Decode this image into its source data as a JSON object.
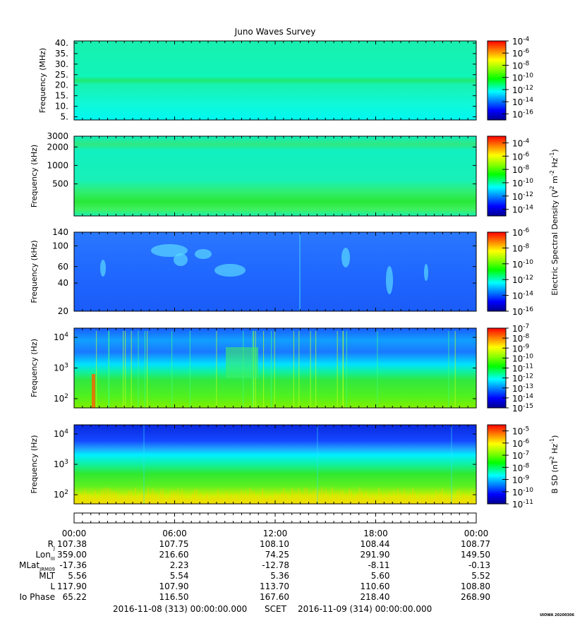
{
  "chart_data": {
    "type": "heatmap",
    "title": "Juno Waves Survey",
    "panels": [
      {
        "ylabel": "Frequency (MHz)",
        "yscale": "linear",
        "ylim": [
          3.5,
          41
        ],
        "yticks": [
          "40.",
          "35.",
          "30.",
          "25.",
          "20.",
          "15.",
          "10.",
          "5."
        ],
        "colorbar": {
          "ticks": [
            "-4",
            "-6",
            "-8",
            "-10",
            "-12",
            "-14",
            "-16"
          ],
          "range": [
            -17,
            -4
          ]
        }
      },
      {
        "ylabel": "Frequency (kHz)",
        "yscale": "log",
        "ylim": [
          150,
          3000
        ],
        "yticks": [
          "3000",
          "2000",
          "1000",
          "500"
        ],
        "colorbar": {
          "ticks": [
            "-4",
            "-6",
            "-8",
            "-10",
            "-12",
            "-14"
          ],
          "range": [
            -15,
            -3
          ]
        }
      },
      {
        "ylabel": "Frequency (kHz)",
        "yscale": "log",
        "ylim": [
          20,
          140
        ],
        "yticks": [
          "140",
          "100",
          "60",
          "40",
          "20"
        ],
        "colorbar": {
          "ticks": [
            "-6",
            "-8",
            "-10",
            "-12",
            "-14",
            "-16"
          ],
          "range": [
            -16,
            -6
          ]
        }
      },
      {
        "ylabel": "Frequency (Hz)",
        "yscale": "log",
        "ylim": [
          50,
          20000
        ],
        "yticks": [
          "4",
          "3",
          "2"
        ],
        "colorbar": {
          "ticks": [
            "-7",
            "-8",
            "-9",
            "-10",
            "-11",
            "-12",
            "-13",
            "-14",
            "-15"
          ],
          "range": [
            -15,
            -7
          ]
        }
      },
      {
        "ylabel": "Frequency (Hz)",
        "yscale": "log",
        "ylim": [
          50,
          20000
        ],
        "yticks": [
          "4",
          "3",
          "2"
        ],
        "colorbar": {
          "ticks": [
            "-5",
            "-6",
            "-7",
            "-8",
            "-9",
            "-10",
            "-11"
          ],
          "range": [
            -11,
            -4.5
          ]
        }
      }
    ],
    "colorbar_base": "10",
    "colorbar_titles": {
      "electric": "Electric Spectral Density (V",
      "electric_exp1": "2",
      "electric_mid": " m",
      "electric_exp2": "-2",
      "electric_mid2": " Hz",
      "electric_exp3": "-1",
      "electric_end": ")",
      "magnetic": "B SD (nT",
      "magnetic_exp1": "2",
      "magnetic_mid": " Hz",
      "magnetic_exp2": "-1",
      "magnetic_end": ")"
    },
    "ephemeris": {
      "times": [
        "00:00",
        "06:00",
        "12:00",
        "18:00",
        "00:00"
      ],
      "rows": [
        {
          "label": "R",
          "sub": "J",
          "values": [
            "107.38",
            "107.75",
            "108.10",
            "108.44",
            "108.77"
          ]
        },
        {
          "label": "Lon",
          "sub": "III",
          "values": [
            "359.00",
            "216.60",
            "74.25",
            "291.90",
            "149.50"
          ]
        },
        {
          "label": "MLat",
          "sub": "JRM09",
          "values": [
            "-17.36",
            "2.23",
            "-12.78",
            "-8.11",
            "-0.13"
          ]
        },
        {
          "label": "MLT",
          "sub": "",
          "values": [
            "5.56",
            "5.54",
            "5.36",
            "5.60",
            "5.52"
          ]
        },
        {
          "label": "L",
          "sub": "",
          "values": [
            "117.90",
            "107.90",
            "113.70",
            "110.60",
            "108.80"
          ]
        },
        {
          "label": "Io Phase",
          "sub": "",
          "values": [
            "65.22",
            "116.50",
            "167.60",
            "218.40",
            "268.90"
          ]
        }
      ],
      "start": "2016-11-08 (313) 00:00:00.000",
      "scet": "SCET",
      "end": "2016-11-09 (314) 00:00:00.000"
    },
    "credit": "UIOWA 20200306"
  }
}
